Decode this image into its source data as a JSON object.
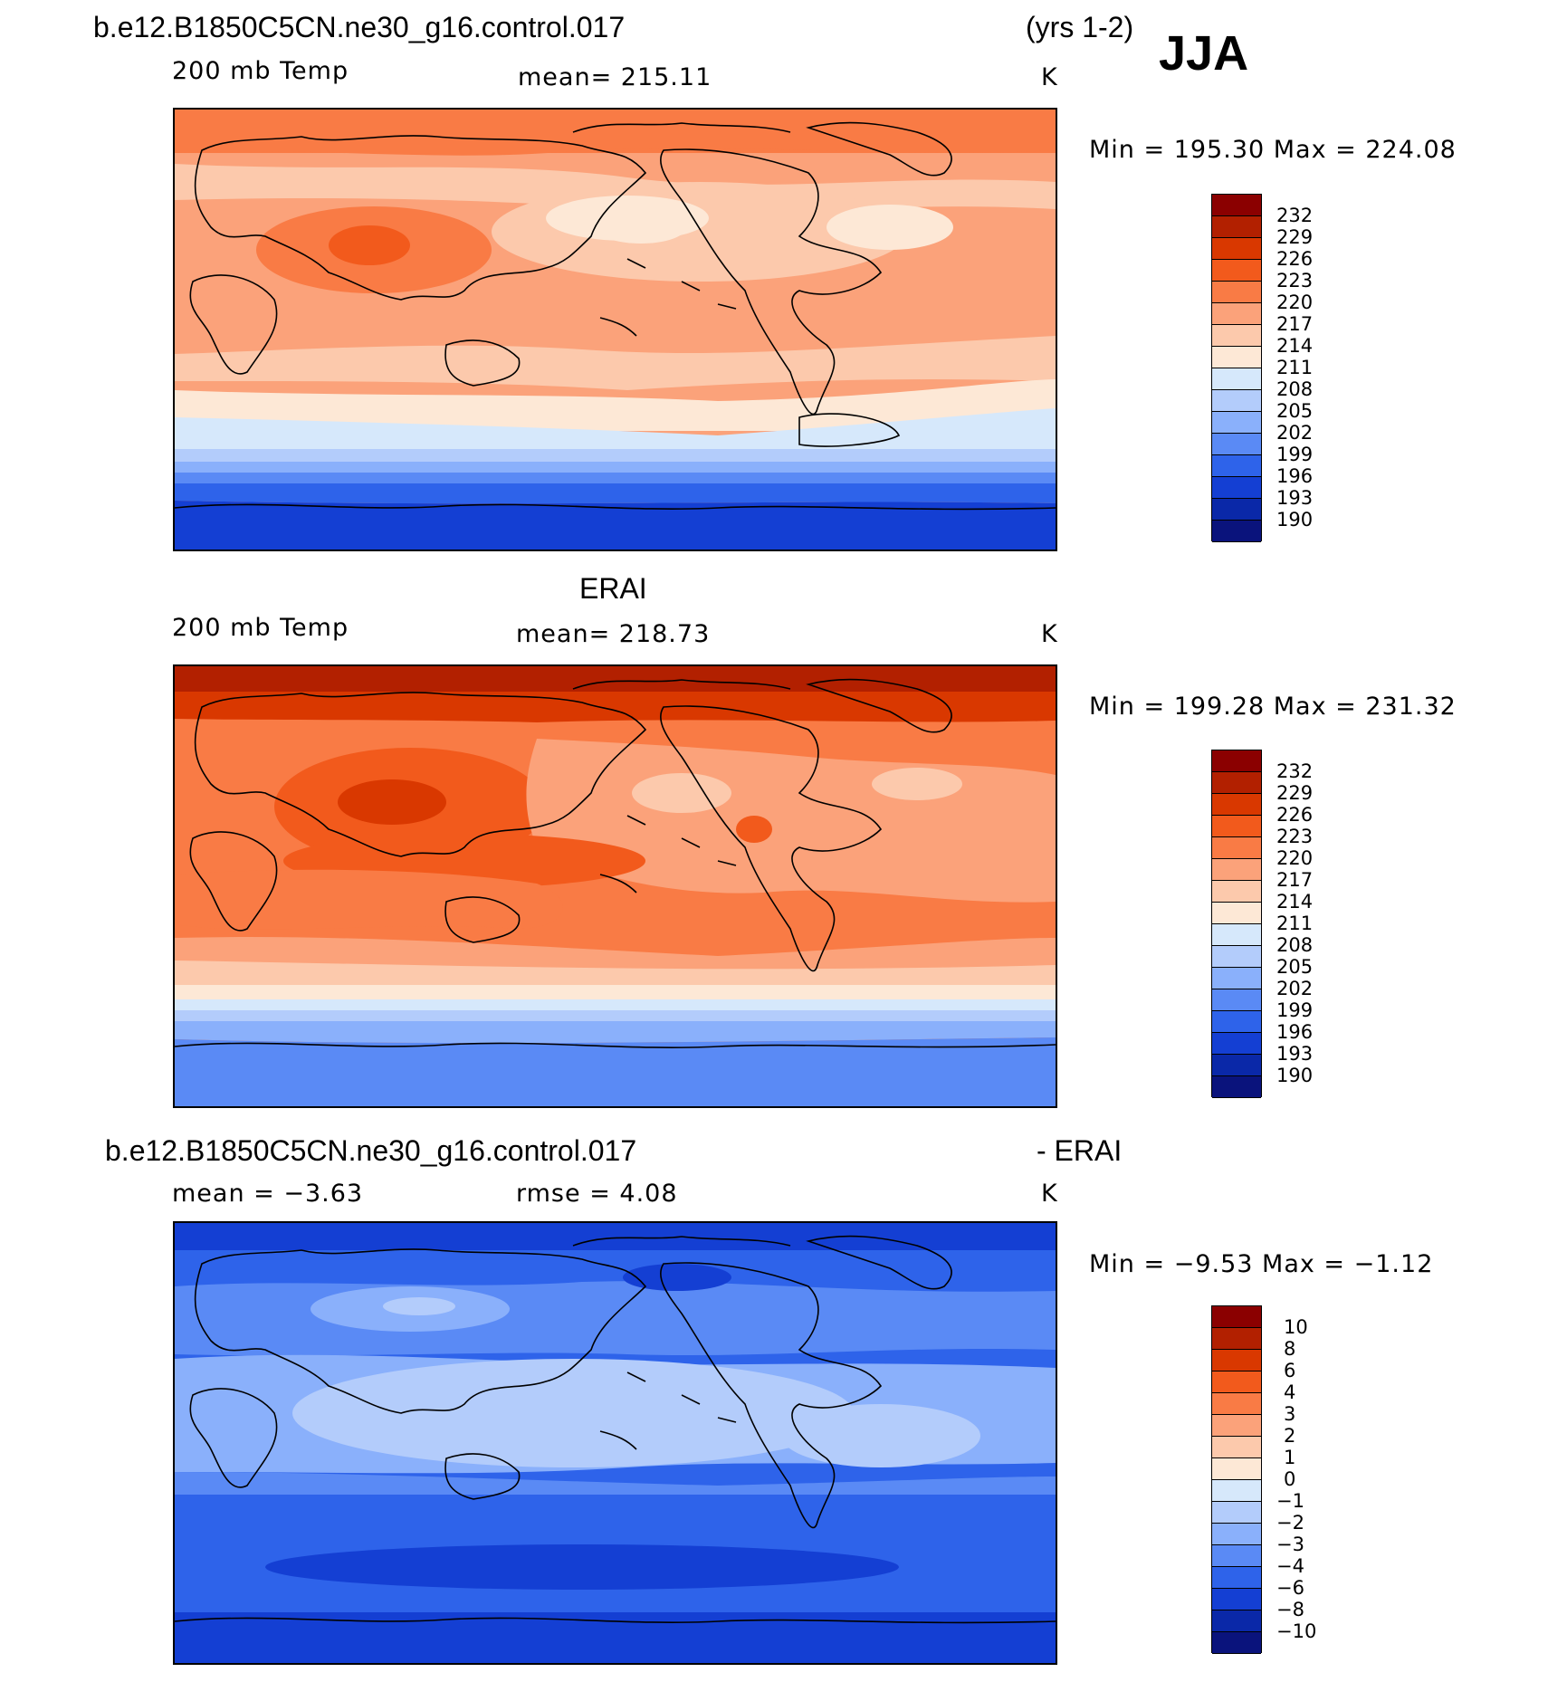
{
  "page": {
    "case_name_top": "b.e12.B1850C5CN.ne30_g16.control.017",
    "years": "(yrs 1-2)",
    "season": "JJA"
  },
  "panels": [
    {
      "id": "model",
      "left_label": "200 mb Temp",
      "center_label": "mean=  215.11",
      "units": "K",
      "minmax": "Min  =  195.30  Max  =  224.08",
      "colorbar": [
        "232",
        "229",
        "226",
        "223",
        "220",
        "217",
        "214",
        "211",
        "208",
        "205",
        "202",
        "199",
        "196",
        "193",
        "190"
      ]
    },
    {
      "id": "obs",
      "title": "ERAI",
      "left_label": "200 mb Temp",
      "center_label": "mean=  218.73",
      "units": "K",
      "minmax": "Min  =  199.28  Max  =  231.32",
      "colorbar": [
        "232",
        "229",
        "226",
        "223",
        "220",
        "217",
        "214",
        "211",
        "208",
        "205",
        "202",
        "199",
        "196",
        "193",
        "190"
      ]
    },
    {
      "id": "diff",
      "title_left": "b.e12.B1850C5CN.ne30_g16.control.017",
      "title_right": "- ERAI",
      "left_label": "mean  =    −3.63",
      "center_label": "rmse  =     4.08",
      "units": "K",
      "minmax": "Min  =    −9.53  Max  =    −1.12",
      "colorbar": [
        "10",
        "8",
        "6",
        "4",
        "3",
        "2",
        "1",
        "0",
        "−1",
        "−2",
        "−3",
        "−4",
        "−6",
        "−8",
        "−10"
      ]
    }
  ],
  "palette": [
    "#8b0000",
    "#b22000",
    "#d93800",
    "#f25a1c",
    "#f97b45",
    "#fba27a",
    "#fcc9ac",
    "#fde8d6",
    "#d6e8fb",
    "#b3ccfb",
    "#8ab0fb",
    "#5a8af5",
    "#2e63ea",
    "#143fd3",
    "#0a28a8",
    "#0a137c"
  ]
}
